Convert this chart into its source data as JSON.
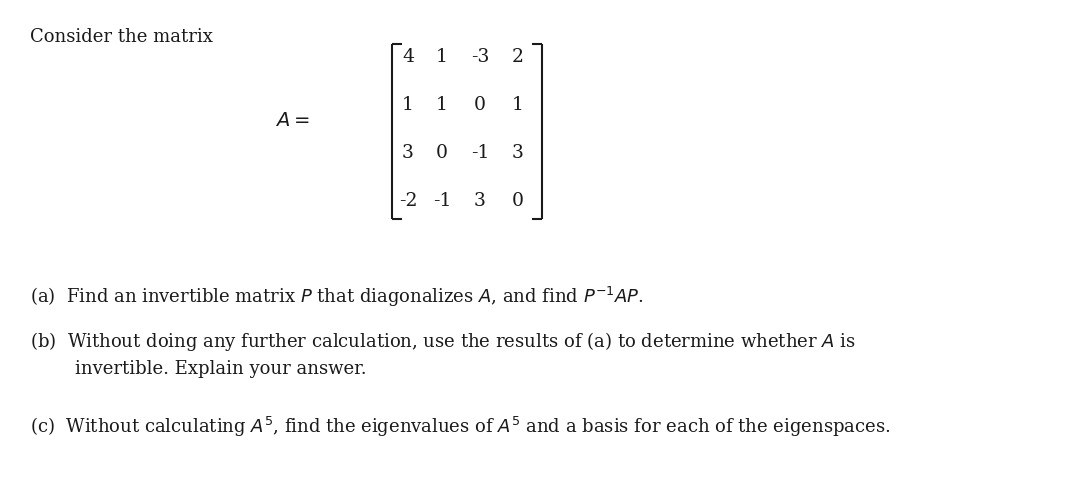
{
  "title_text": "Consider the matrix",
  "matrix_rows": [
    [
      "4",
      "1",
      "-3",
      "2"
    ],
    [
      "1",
      "1",
      "0",
      "1"
    ],
    [
      "3",
      "0",
      "-1",
      "3"
    ],
    [
      "-2",
      "-1",
      "3",
      "0"
    ]
  ],
  "part_a": "(a)  Find an invertible matrix $P$ that diagonalizes $A$, and find $P^{-1}AP$.",
  "part_b1": "(b)  Without doing any further calculation, use the results of (a) to determine whether $A$ is",
  "part_b2": "invertible. Explain your answer.",
  "part_c": "(c)  Without calculating $A^5$, find the eigenvalues of $A^5$ and a basis for each of the eigenspaces.",
  "bg_color": "#ffffff",
  "text_color": "#1a1a1a",
  "font_size": 13.0,
  "matrix_font_size": 13.5,
  "fig_width": 10.66,
  "fig_height": 4.83,
  "dpi": 100
}
